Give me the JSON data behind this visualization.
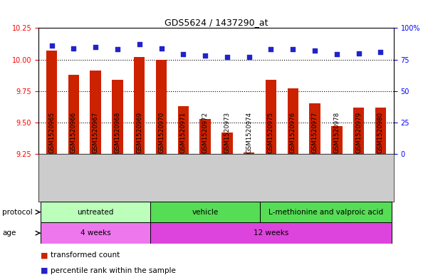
{
  "title": "GDS5624 / 1437290_at",
  "samples": [
    "GSM1520965",
    "GSM1520966",
    "GSM1520967",
    "GSM1520968",
    "GSM1520969",
    "GSM1520970",
    "GSM1520971",
    "GSM1520972",
    "GSM1520973",
    "GSM1520974",
    "GSM1520975",
    "GSM1520976",
    "GSM1520977",
    "GSM1520978",
    "GSM1520979",
    "GSM1520980"
  ],
  "red_values": [
    10.07,
    9.88,
    9.91,
    9.84,
    10.02,
    10.0,
    9.63,
    9.53,
    9.42,
    9.26,
    9.84,
    9.77,
    9.65,
    9.47,
    9.62,
    9.62
  ],
  "blue_values": [
    86,
    84,
    85,
    83,
    87,
    84,
    79,
    78,
    77,
    77,
    83,
    83,
    82,
    79,
    80,
    81
  ],
  "ylim_left": [
    9.25,
    10.25
  ],
  "ylim_right": [
    0,
    100
  ],
  "yticks_left": [
    9.25,
    9.5,
    9.75,
    10.0,
    10.25
  ],
  "yticks_right": [
    0,
    25,
    50,
    75,
    100
  ],
  "ytick_labels_right": [
    "0",
    "25",
    "50",
    "75",
    "100%"
  ],
  "bar_color": "#cc2200",
  "dot_color": "#2222cc",
  "bg_color": "#ffffff",
  "ticklabel_bg": "#cccccc",
  "proto_colors": [
    "#bbffbb",
    "#55dd55",
    "#55dd55"
  ],
  "proto_starts": [
    0,
    5,
    10
  ],
  "proto_ends": [
    4,
    9,
    15
  ],
  "proto_labels": [
    "untreated",
    "vehicle",
    "L-methionine and valproic acid"
  ],
  "age_colors": [
    "#ee77ee",
    "#dd44dd"
  ],
  "age_starts": [
    0,
    5
  ],
  "age_ends": [
    4,
    15
  ],
  "age_labels": [
    "4 weeks",
    "12 weeks"
  ],
  "legend_red": "transformed count",
  "legend_blue": "percentile rank within the sample"
}
